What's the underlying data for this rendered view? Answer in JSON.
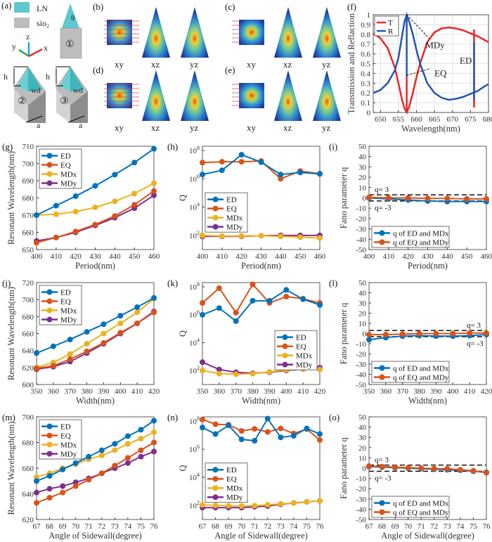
{
  "panel_labels": {
    "a": "(a)",
    "b": "(b)",
    "c": "(c)",
    "d": "(d)",
    "e": "(e)",
    "f": "(f)",
    "g": "(g)",
    "h": "(h)",
    "i": "(i)",
    "j": "(j)",
    "k": "(k)",
    "l": "(l)",
    "m": "(m)",
    "n": "(n)",
    "o": "(o)"
  },
  "schematic": {
    "legend_ln": "LN",
    "legend_sio2": "sio₂",
    "axis_z": "z",
    "axis_y": "y",
    "axis_x": "x",
    "theta": "θ",
    "struct1": "①",
    "struct2": "②",
    "struct3": "③",
    "h": "h",
    "wd": "wd",
    "a": "a",
    "colors": {
      "LN": "#5ec8cc",
      "sio2": "#bdbdbf"
    }
  },
  "field_maps": {
    "xy": "xy",
    "xz": "xz",
    "yz": "yz"
  },
  "series_colors": {
    "ED": "#0072BD",
    "EQ": "#D95319",
    "MDx": "#EDB120",
    "MDy": "#7E2F8E",
    "T": "#f02424",
    "R": "#2456b4"
  },
  "chart_data": [
    {
      "id": "f",
      "type": "line",
      "xlabel": "Wavelength(nm)",
      "ylabel": "Transmission and Reflaction",
      "xlim": [
        648,
        680
      ],
      "ylim": [
        0,
        1
      ],
      "xticks": [
        650,
        655,
        660,
        665,
        670,
        675,
        680
      ],
      "yticks": [
        0,
        0.1,
        0.2,
        0.3,
        0.4,
        0.5,
        0.6,
        0.7,
        0.8,
        0.9,
        1
      ],
      "grid": true,
      "legend": "top-left",
      "x": [
        648,
        650,
        652,
        654,
        655,
        656,
        656.7,
        657.3,
        658,
        659,
        660,
        661,
        663,
        665,
        667,
        669,
        671,
        673,
        675,
        677,
        679,
        680
      ],
      "series": [
        {
          "name": "T",
          "values": [
            0.81,
            0.76,
            0.66,
            0.46,
            0.3,
            0.13,
            0.04,
            0,
            0.06,
            0.2,
            0.36,
            0.5,
            0.72,
            0.82,
            0.86,
            0.87,
            0.86,
            0.84,
            0.81,
            0.78,
            0.74,
            0.72
          ]
        },
        {
          "name": "R",
          "values": [
            0.2,
            0.23,
            0.3,
            0.43,
            0.56,
            0.78,
            0.93,
            1,
            0.93,
            0.8,
            0.64,
            0.5,
            0.3,
            0.2,
            0.15,
            0.13,
            0.14,
            0.16,
            0.19,
            0.22,
            0.27,
            0.29
          ]
        }
      ],
      "annotations": [
        {
          "text": "MDy",
          "x": 657.3,
          "y": 1
        },
        {
          "text": "EQ",
          "x": 657.3,
          "y": 0.38
        },
        {
          "text": "ED",
          "x": 676,
          "y": 0.5
        }
      ]
    },
    {
      "id": "g",
      "type": "line",
      "xlabel": "Period(nm)",
      "ylabel": "Resonant Wavelength(nm)",
      "xlim": [
        400,
        460
      ],
      "ylim": [
        650,
        710
      ],
      "xticks": [
        400,
        410,
        420,
        430,
        440,
        450,
        460
      ],
      "yticks": [
        650,
        660,
        670,
        680,
        690,
        700,
        710
      ],
      "legend": "top-left",
      "x": [
        400,
        410,
        420,
        430,
        440,
        450,
        460
      ],
      "series": [
        {
          "name": "ED",
          "values": [
            670,
            675.5,
            681,
            687,
            693.5,
            700.5,
            708.5
          ]
        },
        {
          "name": "EQ",
          "values": [
            654,
            657,
            660.5,
            664.5,
            669.5,
            676,
            684
          ]
        },
        {
          "name": "MDx",
          "values": [
            670,
            670.5,
            672,
            674.5,
            678,
            682.5,
            688.5
          ]
        },
        {
          "name": "MDy",
          "values": [
            655,
            657,
            660,
            664,
            668.5,
            674,
            681.5
          ]
        }
      ]
    },
    {
      "id": "h",
      "type": "line",
      "xlabel": "Period(nm)",
      "ylabel": "Q",
      "log": true,
      "xlim": [
        400,
        460
      ],
      "ylim": [
        10,
        200000000
      ],
      "xticks": [
        400,
        410,
        420,
        430,
        440,
        450,
        460
      ],
      "yticks": [
        2,
        4,
        6,
        8
      ],
      "legend": "center-left",
      "x": [
        400,
        410,
        420,
        430,
        440,
        450,
        460
      ],
      "series": [
        {
          "name": "ED",
          "values": [
            2000000,
            4000000,
            50000000,
            15000000,
            2000000,
            2800000,
            2200000
          ]
        },
        {
          "name": "EQ",
          "values": [
            14000000,
            16000000,
            16000000,
            18000000,
            1000000,
            3500000,
            2300000
          ]
        },
        {
          "name": "MDx",
          "values": [
            100,
            90,
            90,
            95,
            85,
            75,
            65
          ]
        },
        {
          "name": "MDy",
          "values": [
            85,
            85,
            85,
            95,
            100,
            100,
            100
          ]
        }
      ]
    },
    {
      "id": "i",
      "type": "line",
      "xlabel": "Period(nm)",
      "ylabel": "Fano parameter q",
      "xlim": [
        400,
        460
      ],
      "ylim": [
        -50,
        50
      ],
      "xticks": [
        400,
        410,
        420,
        430,
        440,
        450,
        460
      ],
      "yticks": [
        -50,
        -40,
        -30,
        -20,
        -10,
        0,
        10,
        20,
        30,
        40,
        50
      ],
      "legend": "bottom-left",
      "ref_lines": [
        3,
        -3
      ],
      "ref_labels": [
        "q= 3",
        "q= -3"
      ],
      "x": [
        400,
        410,
        420,
        430,
        440,
        450,
        460
      ],
      "series": [
        {
          "name": "q of ED and MDx",
          "values": [
            0,
            -1,
            -2,
            -3,
            -3.5,
            -3.5,
            -3.5
          ]
        },
        {
          "name": "q of EQ and MDy",
          "values": [
            0.5,
            0,
            0,
            -0.5,
            -0.5,
            -1,
            -1
          ]
        }
      ]
    },
    {
      "id": "j",
      "type": "line",
      "xlabel": "Width(nm)",
      "ylabel": "Resonant Wavelength(nm)",
      "xlim": [
        350,
        420
      ],
      "ylim": [
        600,
        720
      ],
      "xticks": [
        350,
        360,
        370,
        380,
        390,
        400,
        410,
        420
      ],
      "yticks": [
        600,
        620,
        640,
        660,
        680,
        700,
        720
      ],
      "legend": "top-left",
      "x": [
        350,
        360,
        370,
        380,
        390,
        400,
        410,
        420
      ],
      "series": [
        {
          "name": "ED",
          "values": [
            637,
            645,
            653,
            662,
            671,
            681,
            691,
            702
          ]
        },
        {
          "name": "EQ",
          "values": [
            619,
            622,
            630,
            639,
            649,
            661,
            672,
            685
          ]
        },
        {
          "name": "MDx",
          "values": [
            620,
            626,
            636,
            648,
            660,
            672,
            685,
            701
          ]
        },
        {
          "name": "MDy",
          "values": [
            618,
            621,
            627,
            637,
            648,
            660,
            672,
            686
          ]
        }
      ]
    },
    {
      "id": "k",
      "type": "line",
      "xlabel": "Width(nm)",
      "ylabel": "Q",
      "log": true,
      "xlim": [
        350,
        420
      ],
      "ylim": [
        10,
        200000000
      ],
      "xticks": [
        350,
        360,
        370,
        380,
        390,
        400,
        410,
        420
      ],
      "yticks": [
        2,
        4,
        6,
        8
      ],
      "legend": "center-right",
      "x": [
        350,
        360,
        370,
        380,
        390,
        400,
        410,
        420
      ],
      "series": [
        {
          "name": "ED",
          "values": [
            1000000,
            3000000,
            350000,
            10000000,
            10000000,
            60000000,
            13000000,
            5000000
          ]
        },
        {
          "name": "EQ",
          "values": [
            7000000,
            80000000,
            1400000,
            150000000,
            7000000,
            20000000,
            14000000,
            7000000
          ]
        },
        {
          "name": "MDx",
          "values": [
            100,
            60,
            55,
            60,
            80,
            110,
            130,
            120
          ]
        },
        {
          "name": "MDy",
          "values": [
            400,
            120,
            75,
            65,
            75,
            100,
            130,
            160
          ]
        }
      ]
    },
    {
      "id": "l",
      "type": "line",
      "xlabel": "Width(nm)",
      "ylabel": "Fano parameter q",
      "xlim": [
        350,
        420
      ],
      "ylim": [
        -50,
        50
      ],
      "xticks": [
        350,
        360,
        370,
        380,
        390,
        400,
        410,
        420
      ],
      "yticks": [
        -50,
        -40,
        -30,
        -20,
        -10,
        0,
        10,
        20,
        30,
        40,
        50
      ],
      "legend": "bottom-left",
      "ref_lines": [
        3,
        -3
      ],
      "ref_labels": [
        "q= 3",
        "q= -3"
      ],
      "x": [
        350,
        360,
        370,
        380,
        390,
        400,
        410,
        420
      ],
      "series": [
        {
          "name": "q of ED and MDx",
          "values": [
            -6,
            -4,
            -2.5,
            -2,
            -2.5,
            -2.5,
            -2,
            -1
          ]
        },
        {
          "name": "q of EQ and MDy",
          "values": [
            -1,
            -1,
            -0.5,
            0,
            0,
            0,
            0.5,
            0.5
          ]
        }
      ]
    },
    {
      "id": "m",
      "type": "line",
      "xlabel": "Angle of Sidewall(degree)",
      "ylabel": "Resonant Wavelength(nm)",
      "xlim": [
        67,
        76
      ],
      "ylim": [
        620,
        700
      ],
      "xticks": [
        67,
        68,
        69,
        70,
        71,
        72,
        73,
        74,
        75,
        76
      ],
      "yticks": [
        620,
        640,
        660,
        680,
        700
      ],
      "legend": "top-left",
      "x": [
        67,
        68,
        69,
        70,
        71,
        72,
        73,
        74,
        75,
        76
      ],
      "series": [
        {
          "name": "ED",
          "values": [
            650,
            654,
            659,
            664,
            669,
            674,
            679,
            685,
            690,
            697
          ]
        },
        {
          "name": "EQ",
          "values": [
            633,
            637,
            641,
            646,
            651,
            656,
            662,
            668,
            674,
            680
          ]
        },
        {
          "name": "MDx",
          "values": [
            653,
            656,
            660,
            663,
            667,
            670,
            674,
            679,
            683,
            688
          ]
        },
        {
          "name": "MDy",
          "values": [
            641,
            644,
            646,
            649,
            652,
            656,
            660,
            664,
            669,
            673
          ]
        }
      ]
    },
    {
      "id": "n",
      "type": "line",
      "xlabel": "Angle of Sidewall(degree)",
      "ylabel": "Q",
      "log": true,
      "xlim": [
        67,
        76
      ],
      "ylim": [
        10,
        200000000
      ],
      "xticks": [
        67,
        68,
        69,
        70,
        71,
        72,
        73,
        74,
        75,
        76
      ],
      "yticks": [
        2,
        4,
        6,
        8
      ],
      "legend": "center-left",
      "x": [
        67,
        68,
        69,
        70,
        71,
        72,
        73,
        74,
        75,
        76
      ],
      "series": [
        {
          "name": "ED",
          "values": [
            35000000,
            12000000,
            50000000,
            5000000,
            4000000,
            150000000,
            7000000,
            9000000,
            30000000,
            12000000
          ]
        },
        {
          "name": "EQ",
          "values": [
            130000000,
            60000000,
            55000000,
            20000000,
            28000000,
            17000000,
            30000000,
            13000000,
            27000000,
            4500000
          ]
        },
        {
          "name": "MDx",
          "values": [
            110,
            100,
            95,
            90,
            95,
            110,
            130,
            150,
            180,
            210
          ]
        },
        {
          "name": "MDy",
          "values": [
            70,
            70,
            70,
            70,
            80,
            90,
            120,
            150,
            180,
            210
          ]
        }
      ]
    },
    {
      "id": "o",
      "type": "line",
      "xlabel": "Angle of Sidewall(degree)",
      "ylabel": "Fano parameter q",
      "xlim": [
        67,
        76
      ],
      "ylim": [
        -50,
        50
      ],
      "xticks": [
        67,
        68,
        69,
        70,
        71,
        72,
        73,
        74,
        75,
        76
      ],
      "yticks": [
        -50,
        -40,
        -30,
        -20,
        -10,
        0,
        10,
        20,
        30,
        40,
        50
      ],
      "legend": "bottom-left",
      "ref_lines": [
        3,
        -3
      ],
      "ref_labels": [
        "q= 3",
        "q= -3"
      ],
      "x": [
        67,
        68,
        69,
        70,
        71,
        72,
        73,
        74,
        75,
        76
      ],
      "series": [
        {
          "name": "q of ED and MDx",
          "values": [
            1.5,
            1,
            0.5,
            0,
            -0.5,
            -1,
            -1.5,
            -2,
            -3,
            -4
          ]
        },
        {
          "name": "q of EQ and MDy",
          "values": [
            2,
            1.5,
            1,
            0.5,
            0,
            -0.5,
            -0.5,
            -1.5,
            -2.5,
            -4.5
          ]
        }
      ]
    }
  ]
}
